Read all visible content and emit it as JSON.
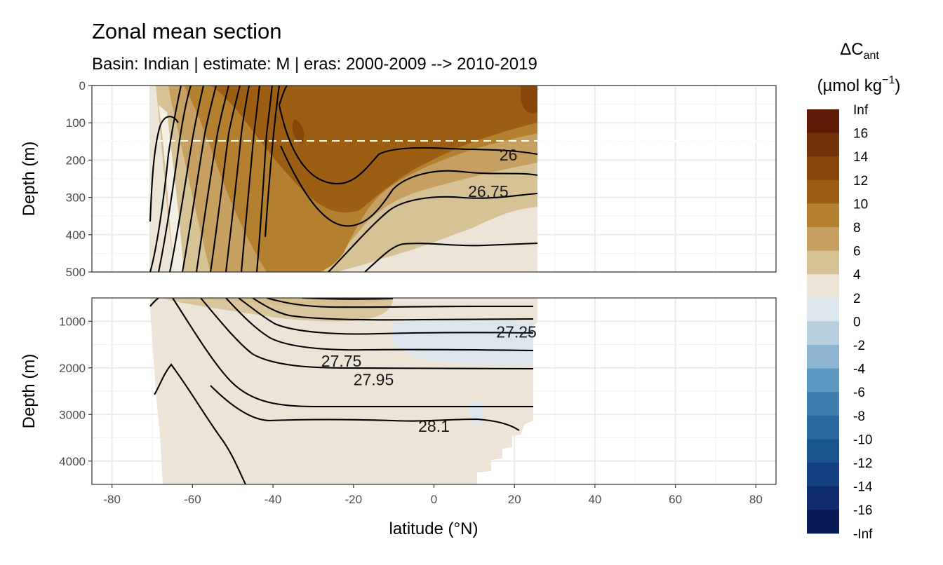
{
  "chart_data": {
    "type": "heatmap",
    "title": "Zonal mean section",
    "subtitle": "Basin: Indian | estimate: M  | eras: 2000-2009 --> 2010-2019",
    "xlabel": "latitude (°N)",
    "ylabel": "Depth (m)",
    "x_ticks": [
      "-80",
      "-60",
      "-40",
      "-20",
      "0",
      "20",
      "40",
      "60",
      "80"
    ],
    "xlim": [
      -85,
      85
    ],
    "grid": true,
    "panels": [
      {
        "name": "upper",
        "ylim": [
          0,
          500
        ],
        "y_ticks": [
          "0",
          "100",
          "200",
          "300",
          "400",
          "500"
        ],
        "reference_line_depth": 150
      },
      {
        "name": "lower",
        "ylim": [
          500,
          4500
        ],
        "y_ticks": [
          "1000",
          "2000",
          "3000",
          "4000"
        ]
      }
    ],
    "legend": {
      "title": "ΔC",
      "title_subscript": "ant",
      "unit_prefix": "(µmol kg",
      "unit_exponent": "−1",
      "unit_suffix": ")",
      "placement": "right",
      "labels": [
        "Inf",
        "16",
        "14",
        "12",
        "10",
        "8",
        "6",
        "4",
        "2",
        "0",
        "-2",
        "-4",
        "-6",
        "-8",
        "-10",
        "-12",
        "-14",
        "-16",
        "-Inf"
      ],
      "colors": [
        "#5e1a05",
        "#74320a",
        "#87470a",
        "#9c5e12",
        "#b2802f",
        "#c5a062",
        "#d7c296",
        "#ebe4d7",
        "#dde6ec",
        "#b6cfe1",
        "#8db5d1",
        "#5f99c1",
        "#3f7fb0",
        "#2a6aa1",
        "#1b5590",
        "#143f80",
        "#0f2d6e",
        "#081b56"
      ]
    },
    "isopycnal_labels": [
      {
        "text": "26",
        "lat": 18.5,
        "depth": 186
      },
      {
        "text": "26.75",
        "lat": 13.5,
        "depth": 284
      },
      {
        "text": "27.25",
        "lat": 20.5,
        "depth": 1230
      },
      {
        "text": "27.75",
        "lat": -23,
        "depth": 1850
      },
      {
        "text": "27.95",
        "lat": -15,
        "depth": 2250
      },
      {
        "text": "28.1",
        "lat": 0,
        "depth": 3250
      }
    ]
  }
}
